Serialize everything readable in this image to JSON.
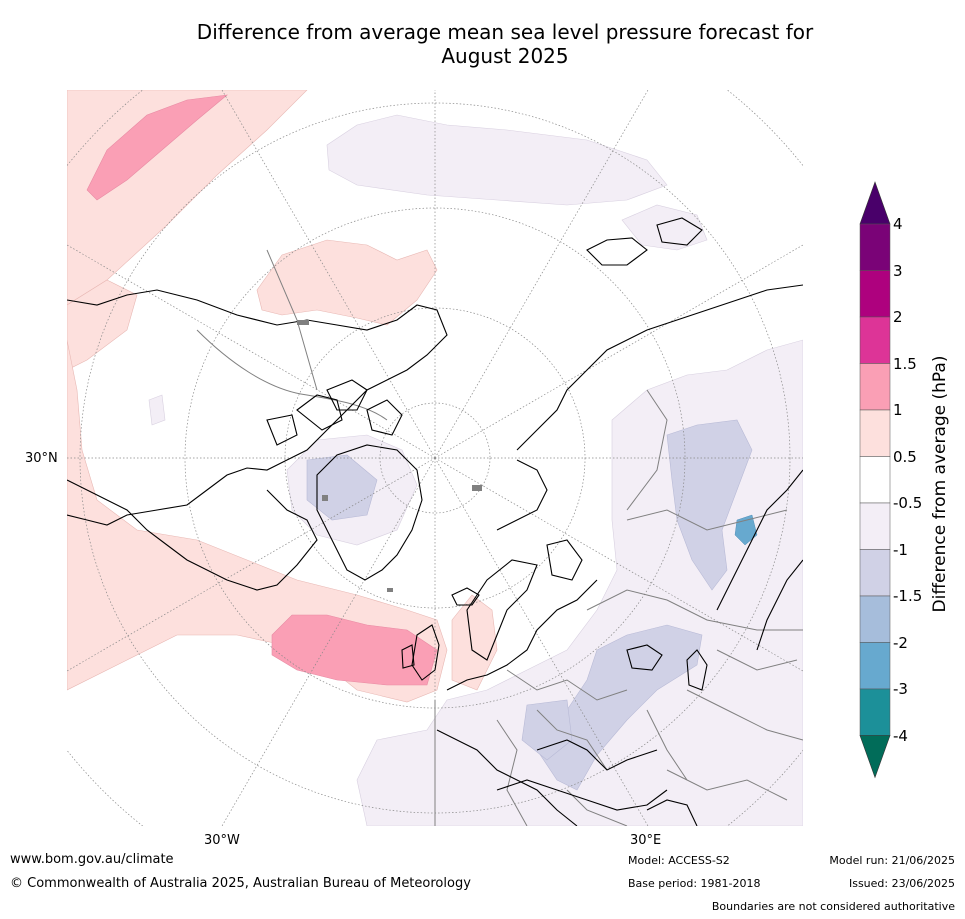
{
  "title_line1": "Difference from average mean sea level pressure forecast for",
  "title_line2": "August 2025",
  "map_labels": {
    "lat_30n": "30°N",
    "lon_30w": "30°W",
    "lon_30e": "30°E"
  },
  "colorbar": {
    "title": "Difference from average (hPa)",
    "tick_labels": [
      "4",
      "3",
      "2",
      "1.5",
      "1",
      "0.5",
      "-0.5",
      "-1",
      "-1.5",
      "-2",
      "-3",
      "-4"
    ],
    "levels": [
      {
        "range": "3 to 4",
        "color": "#7a0377"
      },
      {
        "range": "2 to 3",
        "color": "#ae017e"
      },
      {
        "range": "1.5 to 2",
        "color": "#dd3497"
      },
      {
        "range": "1 to 1.5",
        "color": "#fa9fb5"
      },
      {
        "range": "0.5 to 1",
        "color": "#fde0dd"
      },
      {
        "range": "-0.5 to 0.5",
        "color": "#ffffff"
      },
      {
        "range": "-1 to -0.5",
        "color": "#f3eef6"
      },
      {
        "range": "-1.5 to -1",
        "color": "#d0d1e6"
      },
      {
        "range": "-2 to -1.5",
        "color": "#a6bddb"
      },
      {
        "range": "-3 to -2",
        "color": "#67a9cf"
      },
      {
        "range": "-4 to -3",
        "color": "#1c9099"
      }
    ],
    "over_color": "#49006a",
    "under_color": "#016c59"
  },
  "footer": {
    "website": "www.bom.gov.au/climate",
    "copyright": "© Commonwealth of Australia 2025, Australian Bureau of Meteorology",
    "model": "Model: ACCESS-S2",
    "base_period": "Base period: 1981-2018",
    "model_run": "Model run: 21/06/2025",
    "issued": "Issued: 23/06/2025",
    "disclaimer": "Boundaries are not considered authoritative"
  }
}
